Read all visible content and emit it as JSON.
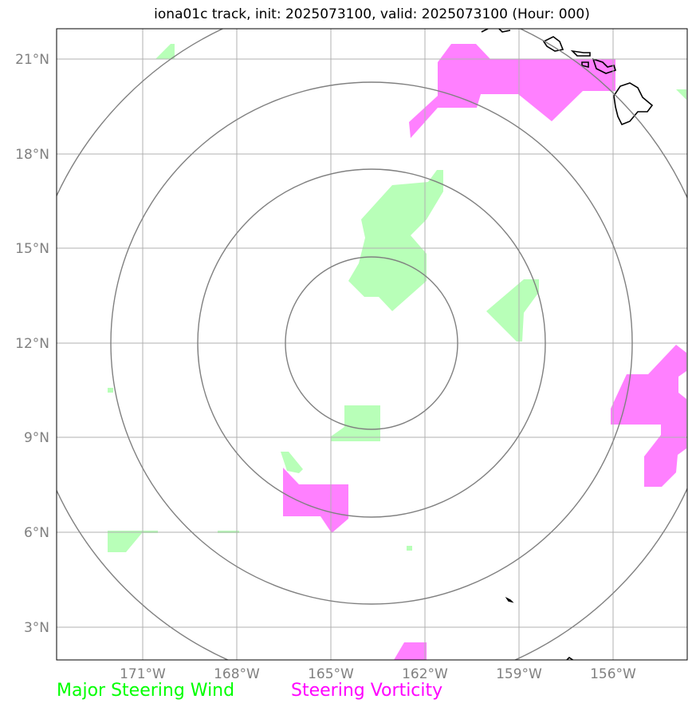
{
  "title": "iona01c track, init: 2025073100, valid: 2025073100 (Hour: 000)",
  "lat_labels": [
    "21°N",
    "18°N",
    "15°N",
    "12°N",
    "9°N",
    "6°N",
    "3°N"
  ],
  "lon_labels": [
    "171°W",
    "168°W",
    "165°W",
    "162°W",
    "159°W",
    "156°W"
  ],
  "legend": {
    "wind_label": "Major Steering Wind",
    "wind_color": "#00ff00",
    "vorticity_label": "Steering Vorticity",
    "vorticity_color": "#ff00ff"
  },
  "colors": {
    "wind_fill": "#b8ffb8",
    "vorticity_fill": "#ff80ff",
    "grid": "#b0b0b0",
    "range_rings": "#808080",
    "tick_labels": "#808080",
    "coastline": "#000000"
  },
  "map_extent": {
    "lon_min": -173.7,
    "lon_max": -153.6,
    "lat_min": 2.0,
    "lat_max": 22.0
  },
  "storm_center": {
    "lon": -163.8,
    "lat": 12.0
  }
}
